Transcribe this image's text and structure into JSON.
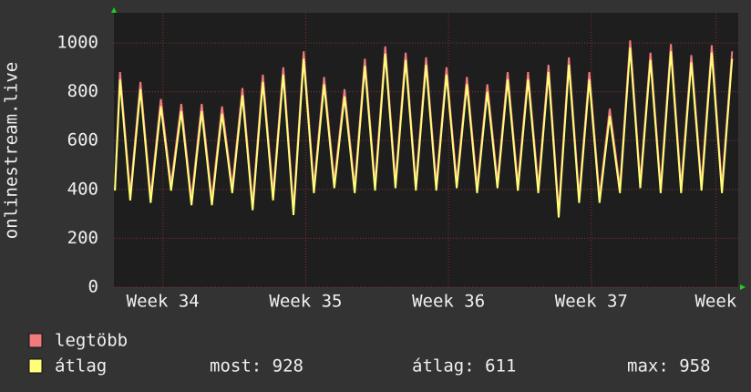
{
  "chart_data": {
    "type": "line",
    "ylabel": "onlinestream.live",
    "xlim": [
      0,
      30.6
    ],
    "xticks": [
      {
        "value": 2.4,
        "label": "Week 34"
      },
      {
        "value": 9.4,
        "label": "Week 35"
      },
      {
        "value": 16.4,
        "label": "Week 36"
      },
      {
        "value": 23.4,
        "label": "Week 37"
      },
      {
        "value": 29.5,
        "label": "Week"
      }
    ],
    "ylim": [
      0,
      1123
    ],
    "yticks": [
      0,
      200,
      400,
      600,
      800,
      1000
    ],
    "grid": true,
    "x": [
      0.05,
      0.3,
      0.55,
      0.8,
      1.05,
      1.3,
      1.55,
      1.8,
      2.05,
      2.3,
      2.55,
      2.8,
      3.05,
      3.3,
      3.55,
      3.8,
      4.05,
      4.3,
      4.55,
      4.8,
      5.05,
      5.3,
      5.55,
      5.8,
      6.05,
      6.3,
      6.55,
      6.8,
      7.05,
      7.3,
      7.55,
      7.8,
      8.05,
      8.3,
      8.55,
      8.8,
      9.05,
      9.3,
      9.55,
      9.8,
      10.05,
      10.3,
      10.55,
      10.8,
      11.05,
      11.3,
      11.55,
      11.8,
      12.05,
      12.3,
      12.55,
      12.8,
      13.05,
      13.3,
      13.55,
      13.8,
      14.05,
      14.3,
      14.55,
      14.8,
      15.05,
      15.3,
      15.55,
      15.8,
      16.05,
      16.3,
      16.55,
      16.8,
      17.05,
      17.3,
      17.55,
      17.8,
      18.05,
      18.3,
      18.55,
      18.8,
      19.05,
      19.3,
      19.55,
      19.8,
      20.05,
      20.3,
      20.55,
      20.8,
      21.05,
      21.3,
      21.55,
      21.8,
      22.05,
      22.3,
      22.55,
      22.8,
      23.05,
      23.3,
      23.55,
      23.8,
      24.05,
      24.3,
      24.55,
      24.8,
      25.05,
      25.3,
      25.55,
      25.8,
      26.05,
      26.3,
      26.55,
      26.8,
      27.05,
      27.3,
      27.55,
      27.8,
      28.05,
      28.3,
      28.55,
      28.8,
      29.05,
      29.3,
      29.55,
      29.8,
      30.05,
      30.3
    ],
    "series": [
      {
        "name": "legtöbb",
        "color": "#f27a7e",
        "values": [
          400,
          880,
          630,
          380,
          610,
          840,
          605,
          370,
          570,
          770,
          595,
          420,
          585,
          750,
          555,
          360,
          555,
          750,
          555,
          360,
          550,
          740,
          575,
          410,
          612,
          815,
          578,
          340,
          605,
          870,
          625,
          380,
          640,
          900,
          610,
          320,
          642,
          965,
          688,
          410,
          635,
          860,
          645,
          430,
          620,
          810,
          610,
          410,
          672,
          935,
          678,
          420,
          702,
          985,
          708,
          430,
          695,
          960,
          690,
          420,
          680,
          940,
          680,
          420,
          660,
          900,
          665,
          430,
          645,
          860,
          635,
          410,
          620,
          830,
          630,
          430,
          655,
          880,
          650,
          420,
          650,
          880,
          645,
          410,
          660,
          910,
          610,
          310,
          625,
          940,
          655,
          370,
          625,
          880,
          625,
          370,
          550,
          730,
          570,
          410,
          710,
          1010,
          720,
          430,
          695,
          960,
          685,
          410,
          702,
          995,
          702,
          410,
          680,
          950,
          685,
          420,
          705,
          990,
          700,
          410,
          688,
          965
        ]
      },
      {
        "name": "átlag",
        "color": "#ffff7a",
        "values": [
          395,
          850,
          605,
          355,
          585,
          810,
          580,
          345,
          545,
          740,
          570,
          395,
          560,
          720,
          530,
          335,
          530,
          720,
          530,
          335,
          525,
          710,
          550,
          385,
          587,
          785,
          553,
          315,
          580,
          840,
          600,
          355,
          615,
          870,
          585,
          295,
          617,
          935,
          663,
          385,
          610,
          830,
          620,
          405,
          595,
          780,
          585,
          385,
          647,
          905,
          653,
          395,
          677,
          955,
          683,
          405,
          670,
          930,
          665,
          395,
          655,
          910,
          655,
          395,
          635,
          870,
          640,
          405,
          620,
          830,
          610,
          385,
          595,
          800,
          605,
          405,
          630,
          850,
          625,
          395,
          625,
          850,
          620,
          385,
          635,
          880,
          585,
          285,
          600,
          910,
          630,
          345,
          600,
          850,
          600,
          345,
          525,
          700,
          545,
          385,
          685,
          980,
          695,
          405,
          670,
          930,
          660,
          385,
          677,
          965,
          677,
          385,
          655,
          920,
          660,
          395,
          680,
          960,
          675,
          385,
          663,
          935
        ]
      }
    ],
    "legend_stats": [
      "most: 928",
      "átlag: 611",
      "max: 958"
    ]
  }
}
